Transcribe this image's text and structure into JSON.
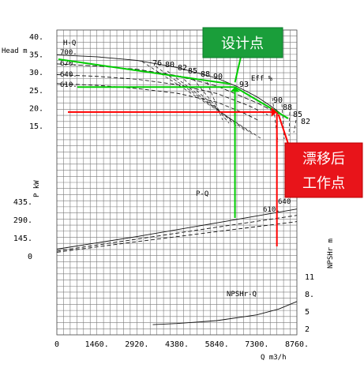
{
  "chart_data": {
    "type": "line",
    "axes": {
      "head": {
        "label": "Head m",
        "ticks": [
          "40.",
          "35.",
          "30.",
          "25.",
          "20.",
          "15."
        ],
        "ylim": [
          15,
          40
        ]
      },
      "power": {
        "label": "P kW",
        "ticks": [
          "435.",
          "290.",
          "145.",
          "0"
        ],
        "ylim": [
          0,
          435
        ]
      },
      "npsh": {
        "label": "NPSHr m",
        "ticks": [
          "11",
          "8.",
          "5",
          "2"
        ],
        "ylim": [
          2,
          11
        ]
      },
      "flow": {
        "label": "Q m3/h",
        "ticks": [
          "0",
          "1460.",
          "2920.",
          "4380.",
          "5840.",
          "7300.",
          "8760."
        ],
        "xlim": [
          0,
          8760
        ]
      }
    },
    "grid": true,
    "curve_labels": {
      "hq": "H-Q",
      "eff": "Eff %",
      "pq": "P-Q",
      "npsh": "NPSHr-Q"
    },
    "impeller_diameters": {
      "head": [
        "700.",
        "670.",
        "640.",
        "610."
      ],
      "power": [
        "640",
        "610."
      ]
    },
    "efficiency_iso_lines": {
      "left_labels": [
        "76",
        "80",
        "82",
        "85",
        "88",
        "90"
      ],
      "peak_label": "93",
      "right_labels": [
        "90",
        "88",
        "85",
        "82"
      ]
    },
    "series": [
      {
        "curve": "hq",
        "diameter": "700.",
        "x": [
          0,
          1460,
          2920,
          4380,
          5840,
          6570,
          7300,
          7900,
          8400
        ],
        "y": [
          35,
          34.5,
          33.5,
          31.5,
          28.5,
          26.2,
          23.3,
          20.2,
          17.2
        ]
      },
      {
        "curve": "hq",
        "diameter": "670.",
        "x": [
          0,
          1460,
          2920,
          4380,
          5840,
          7300,
          8100
        ],
        "y": [
          32.5,
          31.9,
          31,
          29.2,
          26.3,
          21.6,
          18.5
        ]
      },
      {
        "curve": "hq",
        "diameter": "640.",
        "x": [
          0,
          1460,
          2920,
          4380,
          5840,
          7000,
          7700
        ],
        "y": [
          29.5,
          29,
          28.2,
          26.7,
          24.2,
          20.8,
          18.2
        ]
      },
      {
        "curve": "hq",
        "diameter": "610.",
        "x": [
          0,
          1460,
          2920,
          4380,
          5840,
          6800,
          7400
        ],
        "y": [
          27,
          26.5,
          25.6,
          24.3,
          21.8,
          18.8,
          16.5
        ]
      },
      {
        "curve": "pq",
        "diameter": "700.",
        "x": [
          0,
          2920,
          5840,
          8760
        ],
        "y": [
          60,
          160,
          270,
          380
        ]
      },
      {
        "curve": "pq",
        "diameter": "640",
        "x": [
          0,
          2920,
          5840,
          8760
        ],
        "y": [
          45,
          140,
          235,
          330
        ]
      },
      {
        "curve": "pq",
        "diameter": "610.",
        "x": [
          0,
          2920,
          5840,
          8760
        ],
        "y": [
          35,
          120,
          200,
          280
        ]
      },
      {
        "curve": "npsh",
        "x": [
          3500,
          4380,
          5840,
          7300,
          8100,
          8760
        ],
        "y": [
          2.8,
          3.0,
          3.5,
          4.5,
          5.5,
          6.8
        ]
      }
    ],
    "design_point": {
      "q": 6500,
      "head": 26,
      "label": "设计点",
      "color": "#00cc00"
    },
    "operating_point": {
      "q": 8030,
      "head": 19,
      "label_line1": "漂移后",
      "label_line2": "工作点",
      "color": "#ff0000"
    }
  }
}
